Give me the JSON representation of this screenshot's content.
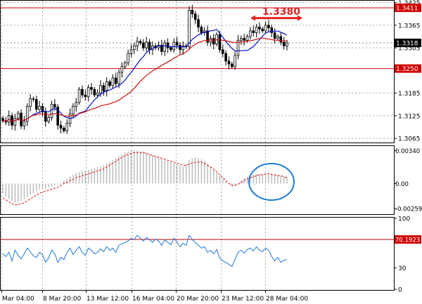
{
  "chart_data": [
    {
      "type": "candlestick",
      "panel": "price",
      "ylim": [
        1.3054,
        1.3428
      ],
      "y_ticks": [
        "1.3425",
        "1.3365",
        "1.3305",
        "1.3185",
        "1.3125",
        "1.3065"
      ],
      "horizontal_levels": [
        {
          "value": 1.3411,
          "label": "1.3411",
          "color": "#d00000"
        },
        {
          "value": 1.325,
          "label": "1.3250",
          "color": "#d00000"
        }
      ],
      "current_price": {
        "value": 1.3318,
        "label": "1.3318"
      },
      "annotation": {
        "text": "1.3380",
        "value": 1.338,
        "color": "#e0201e"
      },
      "close": [
        1.3112,
        1.3108,
        1.3125,
        1.31,
        1.3118,
        1.3132,
        1.3098,
        1.311,
        1.315,
        1.317,
        1.3168,
        1.3142,
        1.315,
        1.3135,
        1.311,
        1.312,
        1.3155,
        1.3148,
        1.31,
        1.3092,
        1.3085,
        1.3105,
        1.313,
        1.315,
        1.316,
        1.3195,
        1.318,
        1.3175,
        1.32,
        1.3195,
        1.318,
        1.3185,
        1.3205,
        1.319,
        1.3215,
        1.3205,
        1.3225,
        1.321,
        1.324,
        1.3255,
        1.3265,
        1.329,
        1.33,
        1.331,
        1.3322,
        1.3318,
        1.3305,
        1.332,
        1.33,
        1.331,
        1.3305,
        1.3312,
        1.3295,
        1.3318,
        1.3305,
        1.33,
        1.332,
        1.3312,
        1.33,
        1.331,
        1.3308,
        1.3405,
        1.3395,
        1.338,
        1.336,
        1.3345,
        1.335,
        1.332,
        1.333,
        1.3315,
        1.334,
        1.33,
        1.329,
        1.327,
        1.3262,
        1.3255,
        1.3285,
        1.3325,
        1.333,
        1.3325,
        1.3335,
        1.335,
        1.3345,
        1.336,
        1.3355,
        1.335,
        1.3365,
        1.3358,
        1.3345,
        1.333,
        1.3335,
        1.332,
        1.331,
        1.3318
      ]
    },
    {
      "type": "area",
      "panel": "macd",
      "ylim": [
        -0.0031,
        0.0038
      ],
      "y_ticks": [
        "0.00340",
        "0.00",
        "-0.00259"
      ],
      "histogram": [
        -0.001,
        -0.0013,
        -0.0016,
        -0.0018,
        -0.002,
        -0.0019,
        -0.0018,
        -0.0016,
        -0.0014,
        -0.0012,
        -0.001,
        -0.0008,
        -0.0006,
        -0.0005,
        -0.0006,
        -0.0004,
        -0.0003,
        -0.0002,
        -0.0001,
        0.0001,
        0.0003,
        0.0005,
        0.0007,
        0.0009,
        0.0011,
        0.0012,
        0.0013,
        0.0013,
        0.0014,
        0.0015,
        0.0016,
        0.0017,
        0.0018,
        0.0019,
        0.0021,
        0.0022,
        0.0024,
        0.0026,
        0.0028,
        0.003,
        0.0032,
        0.0033,
        0.0034,
        0.0034,
        0.0034,
        0.0033,
        0.0033,
        0.0032,
        0.003,
        0.0029,
        0.0028,
        0.0027,
        0.0025,
        0.0024,
        0.0023,
        0.0022,
        0.0021,
        0.002,
        0.0019,
        0.0018,
        0.002,
        0.0024,
        0.0026,
        0.0027,
        0.0026,
        0.0025,
        0.0023,
        0.002,
        0.0017,
        0.0014,
        0.0011,
        0.0008,
        0.0005,
        0.0002,
        -0.0001,
        -0.0003,
        -0.0002,
        0.0001,
        0.0003,
        0.0005,
        0.0007,
        0.0008,
        0.0009,
        0.001,
        0.001,
        0.001,
        0.0011,
        0.0011,
        0.001,
        0.0009,
        0.0009,
        0.0008,
        0.0007,
        0.0007
      ],
      "signal": [
        -0.0015,
        -0.0017,
        -0.0019,
        -0.0021,
        -0.0022,
        -0.0022,
        -0.0021,
        -0.002,
        -0.0018,
        -0.0016,
        -0.0014,
        -0.0012,
        -0.001,
        -0.0009,
        -0.0008,
        -0.0007,
        -0.0006,
        -0.0005,
        -0.0004,
        -0.0002,
        0.0,
        0.0001,
        0.0003,
        0.0004,
        0.0006,
        0.0007,
        0.0008,
        0.0009,
        0.001,
        0.0011,
        0.0012,
        0.0013,
        0.0014,
        0.0015,
        0.0017,
        0.0019,
        0.0021,
        0.0023,
        0.0025,
        0.0027,
        0.0029,
        0.003,
        0.0031,
        0.0032,
        0.0032,
        0.0032,
        0.0032,
        0.0031,
        0.003,
        0.0029,
        0.0028,
        0.0027,
        0.0026,
        0.0025,
        0.0024,
        0.0023,
        0.0022,
        0.0021,
        0.002,
        0.0019,
        0.0019,
        0.002,
        0.0021,
        0.0022,
        0.0022,
        0.0022,
        0.0021,
        0.0019,
        0.0017,
        0.0015,
        0.0012,
        0.0009,
        0.0006,
        0.0003,
        0.0,
        -0.0002,
        -0.0002,
        -0.0001,
        0.0001,
        0.0003,
        0.0005,
        0.0006,
        0.0007,
        0.0008,
        0.0009,
        0.0009,
        0.001,
        0.001,
        0.0009,
        0.0009,
        0.0008,
        0.0008,
        0.0007,
        0.0006
      ],
      "annotation": {
        "shape": "ellipse",
        "color": "#1e7ad8"
      }
    },
    {
      "type": "line",
      "panel": "rsi",
      "ylim": [
        0,
        100
      ],
      "y_ticks": [
        "100",
        "70",
        "30",
        "0"
      ],
      "level": {
        "value": 70.1923,
        "label": "70.1923",
        "color": "#d00000"
      },
      "values": [
        50,
        46,
        52,
        40,
        55,
        48,
        43,
        50,
        58,
        53,
        47,
        45,
        52,
        49,
        38,
        44,
        55,
        50,
        38,
        45,
        42,
        52,
        58,
        49,
        55,
        60,
        52,
        48,
        58,
        55,
        50,
        52,
        57,
        53,
        60,
        55,
        58,
        52,
        62,
        64,
        66,
        68,
        72,
        70,
        76,
        72,
        68,
        73,
        70,
        66,
        71,
        68,
        62,
        70,
        66,
        63,
        72,
        67,
        60,
        65,
        62,
        76,
        70,
        66,
        62,
        58,
        60,
        52,
        55,
        50,
        56,
        44,
        40,
        38,
        35,
        32,
        42,
        52,
        55,
        51,
        56,
        58,
        54,
        60,
        55,
        53,
        58,
        55,
        46,
        40,
        45,
        38,
        41,
        42
      ],
      "line_color": "#1e7ad8"
    }
  ],
  "x_axis": {
    "labels": [
      "Mar 04:00",
      "8 Mar 20:00",
      "13 Mar 12:00",
      "16 Mar 04:00",
      "20 Mar 20:00",
      "23 Mar 12:00",
      "28 Mar 04:00"
    ]
  },
  "colors": {
    "bull_candle": "#ffffff",
    "bear_candle": "#000000",
    "ma_fast": "#0010c8",
    "ma_slow": "#d01010",
    "macd_hist": "#b8b8b8",
    "macd_signal": "#e01010",
    "grid": "#a8a8a8"
  }
}
